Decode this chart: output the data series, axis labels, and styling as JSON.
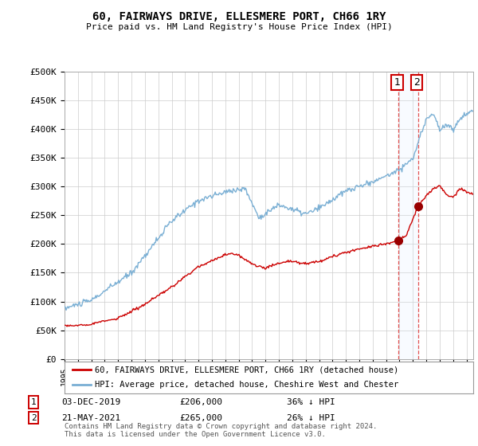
{
  "title": "60, FAIRWAYS DRIVE, ELLESMERE PORT, CH66 1RY",
  "subtitle": "Price paid vs. HM Land Registry's House Price Index (HPI)",
  "ylabel_ticks": [
    "£0",
    "£50K",
    "£100K",
    "£150K",
    "£200K",
    "£250K",
    "£300K",
    "£350K",
    "£400K",
    "£450K",
    "£500K"
  ],
  "ytick_values": [
    0,
    50000,
    100000,
    150000,
    200000,
    250000,
    300000,
    350000,
    400000,
    450000,
    500000
  ],
  "xlim_start": 1995,
  "xlim_end": 2025.5,
  "ylim": [
    0,
    500000
  ],
  "legend_line1": "60, FAIRWAYS DRIVE, ELLESMERE PORT, CH66 1RY (detached house)",
  "legend_line2": "HPI: Average price, detached house, Cheshire West and Chester",
  "point1_date": "03-DEC-2019",
  "point1_price": "£206,000",
  "point1_hpi": "36% ↓ HPI",
  "point1_x": 2019.92,
  "point1_y": 206000,
  "point2_date": "21-MAY-2021",
  "point2_price": "£265,000",
  "point2_hpi": "26% ↓ HPI",
  "point2_x": 2021.38,
  "point2_y": 265000,
  "line1_color": "#cc0000",
  "line2_color": "#7aafd4",
  "highlight_fill": "#ddeeff",
  "footer": "Contains HM Land Registry data © Crown copyright and database right 2024.\nThis data is licensed under the Open Government Licence v3.0.",
  "background_color": "#ffffff",
  "grid_color": "#cccccc"
}
